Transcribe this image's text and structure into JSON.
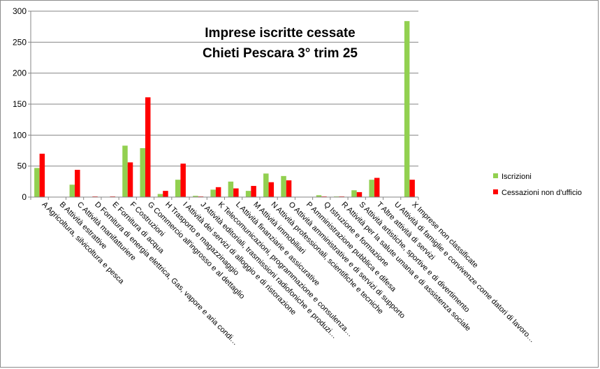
{
  "chart_data": {
    "type": "bar",
    "title_lines": [
      "Imprese iscritte cessate",
      "Chieti Pescara  3° trim 25"
    ],
    "xlabel": "",
    "ylabel": "",
    "ylim": [
      0,
      300
    ],
    "yticks": [
      0,
      50,
      100,
      150,
      200,
      250,
      300
    ],
    "grid": "horizontal",
    "legend_position": "right",
    "categories": [
      "A Agricoltura, silvicoltura e pesca",
      "B Attività estrattive",
      "C Attività manifatturiere",
      "D Fornitura di energia elettrica, Gas, vapore e aria condi…",
      "E Fornitura di acqua",
      "F Costruzioni",
      "G Commercio all'ingrosso e al dettaglio",
      "H Trasporto e magazzinaggio",
      "I Attività dei servizi di alloggio e di ristorazione",
      "J Attività editoriali, trasmissioni radiofoniche e produzi…",
      "K Telecomunicazioni, programmazione e consulenza…",
      "L Attività finanziarie e assicurative",
      "M Attività immobiliari",
      "N Attività professionali, scientifiche e tecniche",
      "O Attività amministrative e di servizi di supporto",
      "P Amministrazione pubblica e difesa",
      "Q Istruzione e formazione",
      "R Attività per la salute umana e di assistenza sociale",
      "S Attività artistiche, sportive e di divertimento",
      "T Altre attività di servizi",
      "U Attività di famiglie e convivenze come datori di lavoro…",
      "X Imprese non classificate"
    ],
    "series": [
      {
        "name": "Iscrizioni",
        "color": "#92d050",
        "values": [
          47,
          0,
          20,
          0,
          0,
          83,
          79,
          5,
          28,
          2,
          12,
          25,
          10,
          38,
          34,
          0,
          3,
          1,
          11,
          28,
          0,
          284
        ]
      },
      {
        "name": "Cessazioni non d'ufficio",
        "color": "#ff0000",
        "values": [
          70,
          0,
          44,
          1,
          1,
          56,
          161,
          10,
          54,
          1,
          16,
          14,
          18,
          24,
          27,
          0,
          1,
          1,
          8,
          31,
          0,
          28
        ]
      }
    ]
  }
}
